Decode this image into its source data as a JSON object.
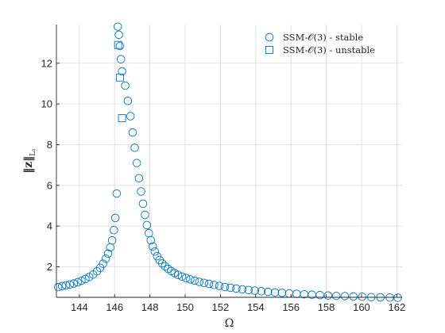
{
  "chart_data": {
    "type": "scatter",
    "xlabel": "Ω",
    "ylabel": "‖z‖",
    "ylabel_sub": "L₂",
    "xlim": [
      142.7,
      162.3
    ],
    "ylim": [
      0.5,
      13.9
    ],
    "xticks": [
      144,
      146,
      148,
      150,
      152,
      154,
      156,
      158,
      160,
      162
    ],
    "yticks": [
      2,
      4,
      6,
      8,
      10,
      12
    ],
    "grid": true,
    "legend_position": "top-right",
    "colors": {
      "marker": "#0072BD"
    },
    "series": [
      {
        "name": "SSM-𝒪(3) - stable",
        "marker": "circle",
        "x": [
          142.8,
          143.02,
          143.24,
          143.46,
          143.68,
          143.9,
          144.12,
          144.34,
          144.56,
          144.78,
          145.0,
          145.18,
          145.34,
          145.5,
          145.63,
          145.75,
          145.86,
          145.96,
          146.04,
          146.12,
          146.18,
          146.24,
          146.3,
          146.36,
          146.42,
          146.6,
          146.75,
          146.9,
          147.02,
          147.14,
          147.26,
          147.38,
          147.5,
          147.61,
          147.72,
          147.83,
          147.94,
          148.05,
          148.16,
          148.28,
          148.41,
          148.55,
          148.7,
          148.86,
          149.03,
          149.21,
          149.4,
          149.6,
          149.82,
          150.05,
          150.29,
          150.54,
          150.8,
          151.07,
          151.35,
          151.64,
          151.94,
          152.25,
          152.57,
          152.9,
          153.24,
          153.59,
          153.95,
          154.32,
          154.7,
          155.09,
          155.49,
          155.9,
          156.32,
          156.75,
          157.19,
          157.64,
          158.1,
          158.57,
          159.05,
          159.54,
          160.04,
          160.55,
          161.07,
          161.6,
          162.05
        ],
        "y": [
          1.0,
          1.05,
          1.09,
          1.13,
          1.18,
          1.24,
          1.31,
          1.4,
          1.5,
          1.62,
          1.78,
          1.95,
          2.15,
          2.4,
          2.65,
          2.95,
          3.3,
          3.8,
          4.4,
          5.6,
          13.8,
          13.4,
          12.85,
          12.2,
          11.6,
          10.9,
          10.15,
          9.4,
          8.6,
          7.85,
          7.1,
          6.35,
          5.7,
          5.1,
          4.55,
          4.05,
          3.65,
          3.3,
          3.0,
          2.75,
          2.52,
          2.33,
          2.17,
          2.03,
          1.9,
          1.79,
          1.69,
          1.6,
          1.52,
          1.45,
          1.38,
          1.32,
          1.26,
          1.21,
          1.16,
          1.11,
          1.06,
          1.01,
          0.97,
          0.93,
          0.89,
          0.86,
          0.83,
          0.8,
          0.77,
          0.74,
          0.72,
          0.69,
          0.67,
          0.65,
          0.63,
          0.61,
          0.59,
          0.57,
          0.56,
          0.54,
          0.53,
          0.51,
          0.5,
          0.49,
          0.48
        ]
      },
      {
        "name": "SSM-𝒪(3) - unstable",
        "marker": "square",
        "x": [
          146.2,
          146.3,
          146.42
        ],
        "y": [
          12.9,
          11.3,
          9.3
        ]
      }
    ]
  }
}
